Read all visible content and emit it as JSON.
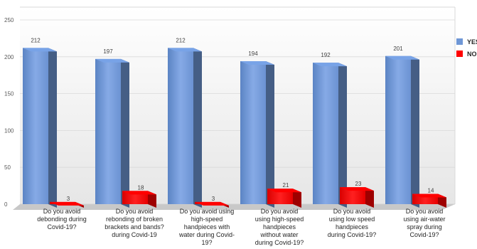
{
  "chart_data": {
    "type": "bar",
    "title": "",
    "xlabel": "",
    "ylabel": "",
    "ylim": [
      0,
      250
    ],
    "yticks": [
      0,
      50,
      100,
      150,
      200,
      250
    ],
    "grid": true,
    "legend_position": "right",
    "categories": [
      [
        "Do you avoid",
        "debonding during",
        "Covid-19?"
      ],
      [
        "Do you avoid",
        "rebonding of broken",
        "brackets and bands?",
        "during Covid-19"
      ],
      [
        "Do you avoid using",
        "high-speed",
        "handpieces with",
        "water during Covid-",
        "19?"
      ],
      [
        "Do you avoid",
        "using high-speed",
        "handpieces",
        "without water",
        "during Covid-19?"
      ],
      [
        "Do you avoid",
        "using low speed",
        "handpieces",
        "during Covid-19?"
      ],
      [
        "Do you avoid",
        "using air-water",
        "spray during",
        "Covid-19?"
      ]
    ],
    "series": [
      {
        "name": "YES",
        "color": "#6f97d6",
        "values": [
          212,
          197,
          212,
          194,
          192,
          201
        ]
      },
      {
        "name": "NO",
        "color": "#ff0000",
        "values": [
          3,
          18,
          3,
          21,
          23,
          14
        ]
      }
    ]
  }
}
